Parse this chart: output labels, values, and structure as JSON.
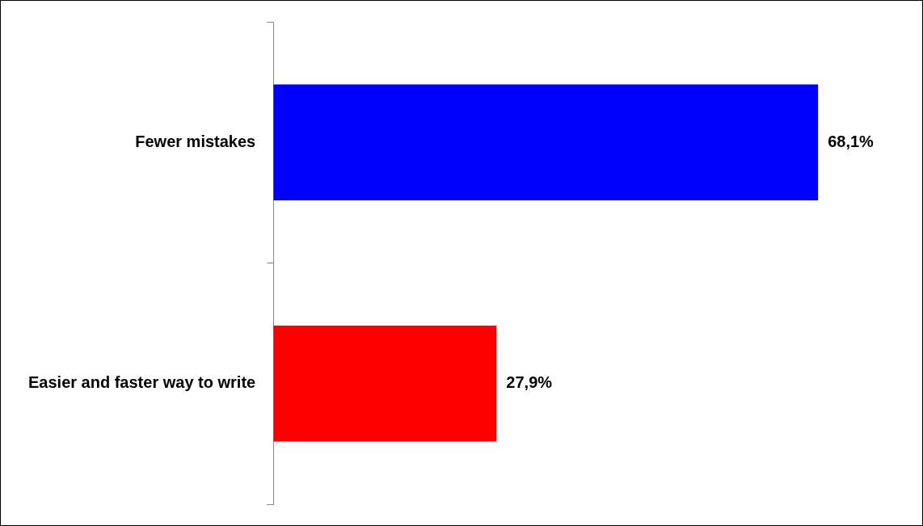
{
  "chart_data": {
    "type": "bar",
    "orientation": "horizontal",
    "categories": [
      "Fewer mistakes",
      "Easier and faster way to write"
    ],
    "values": [
      68.1,
      27.9
    ],
    "colors": [
      "#0000ff",
      "#ff0000"
    ],
    "value_labels": [
      "68,1%",
      "27,9%"
    ],
    "legend": false
  }
}
